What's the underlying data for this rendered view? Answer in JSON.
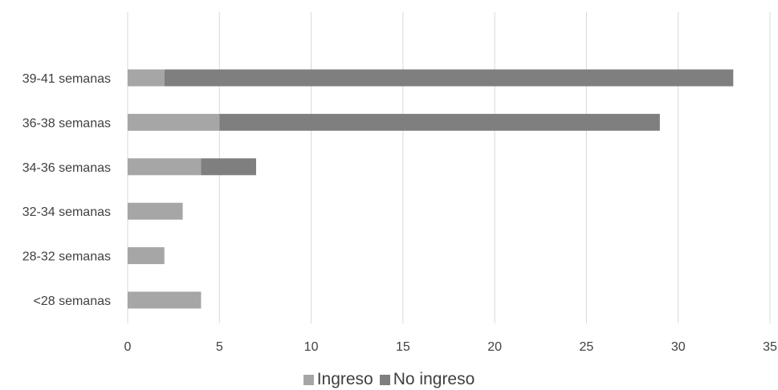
{
  "chart_data": {
    "type": "bar",
    "orientation": "horizontal",
    "stacked": true,
    "categories": [
      "<28 semanas",
      "28-32 semanas",
      "32-34 semanas",
      "34-36 semanas",
      "36-38 semanas",
      "39-41 semanas"
    ],
    "series": [
      {
        "name": "Ingreso",
        "values": [
          4,
          2,
          3,
          4,
          5,
          2
        ],
        "color": "#a6a6a6"
      },
      {
        "name": "No ingreso",
        "values": [
          0,
          0,
          0,
          3,
          24,
          31
        ],
        "color": "#7f7f7f"
      }
    ],
    "xlim": [
      0,
      35
    ],
    "xticks": [
      0,
      5,
      10,
      15,
      20,
      25,
      30,
      35
    ],
    "grid": "vertical",
    "legend_position": "bottom",
    "title": "",
    "xlabel": "",
    "ylabel": ""
  }
}
